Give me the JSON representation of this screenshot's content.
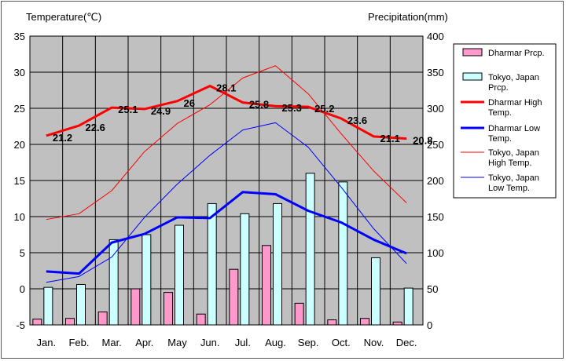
{
  "chart_data": {
    "type": "bar+line",
    "left_axis_title": "Temperature(℃)",
    "right_axis_title": "Precipitation(mm)",
    "categories": [
      "Jan.",
      "Feb.",
      "Mar.",
      "Apr.",
      "May",
      "Jun.",
      "Jul.",
      "Aug.",
      "Sep.",
      "Oct.",
      "Nov.",
      "Dec."
    ],
    "ylim_left": [
      -5,
      35
    ],
    "ylim_right": [
      0,
      400
    ],
    "left_ticks": [
      -5,
      0,
      5,
      10,
      15,
      20,
      25,
      30,
      35
    ],
    "right_ticks": [
      0,
      50,
      100,
      150,
      200,
      250,
      300,
      350,
      400
    ],
    "grid": true,
    "legend_position": "right",
    "plot_background": "#c0c0c0",
    "bar_series": [
      {
        "name": "Dharmar Prcp.",
        "color": "#ff99cc",
        "values": [
          8,
          9,
          18,
          50,
          45,
          15,
          77,
          110,
          30,
          7,
          9,
          4
        ]
      },
      {
        "name": "Tokyo, Japan Prcp.",
        "color": "#ccffff",
        "values": [
          52,
          56,
          118,
          125,
          138,
          168,
          154,
          168,
          210,
          198,
          93,
          51
        ]
      }
    ],
    "line_series": [
      {
        "name": "Dharmar High Temp.",
        "color": "#ff0000",
        "width": 3,
        "values": [
          21.2,
          22.6,
          25.1,
          24.9,
          26,
          28.1,
          25.8,
          25.3,
          25.2,
          23.6,
          21.1,
          20.8
        ],
        "labels": [
          "21.2",
          "22.6",
          "25.1",
          "24.9",
          "26",
          "28.1",
          "25.8",
          "25.3",
          "25.2",
          "23.6",
          "21.1",
          "20.8"
        ]
      },
      {
        "name": "Dharmar Low Temp.",
        "color": "#0000ff",
        "width": 3,
        "values": [
          2.4,
          2.1,
          6.4,
          7.6,
          9.9,
          9.8,
          13.4,
          13.1,
          10.8,
          9.2,
          6.8,
          4.9
        ]
      },
      {
        "name": "Tokyo, Japan High Temp.",
        "color": "#ff0000",
        "width": 1,
        "values": [
          9.6,
          10.4,
          13.6,
          19,
          22.9,
          25.5,
          29.2,
          30.9,
          27,
          21.5,
          16.3,
          11.9
        ]
      },
      {
        "name": "Tokyo, Japan Low Temp.",
        "color": "#0000ff",
        "width": 1,
        "values": [
          0.9,
          1.7,
          4.4,
          9.9,
          14.5,
          18.5,
          22,
          23,
          19.6,
          14.1,
          8.3,
          3.5
        ]
      }
    ],
    "legend": [
      {
        "label": "Dharmar Prcp.",
        "kind": "bar",
        "color": "#ff99cc"
      },
      {
        "label": "Tokyo, Japan Prcp.",
        "kind": "bar",
        "color": "#ccffff"
      },
      {
        "label": "Dharmar High Temp.",
        "kind": "line",
        "color": "#ff0000",
        "width": 3
      },
      {
        "label": "Dharmar Low Temp.",
        "kind": "line",
        "color": "#0000ff",
        "width": 3
      },
      {
        "label": "Tokyo, Japan High Temp.",
        "kind": "line",
        "color": "#ff0000",
        "width": 1
      },
      {
        "label": "Tokyo, Japan Low Temp.",
        "kind": "line",
        "color": "#0000ff",
        "width": 1
      }
    ]
  }
}
